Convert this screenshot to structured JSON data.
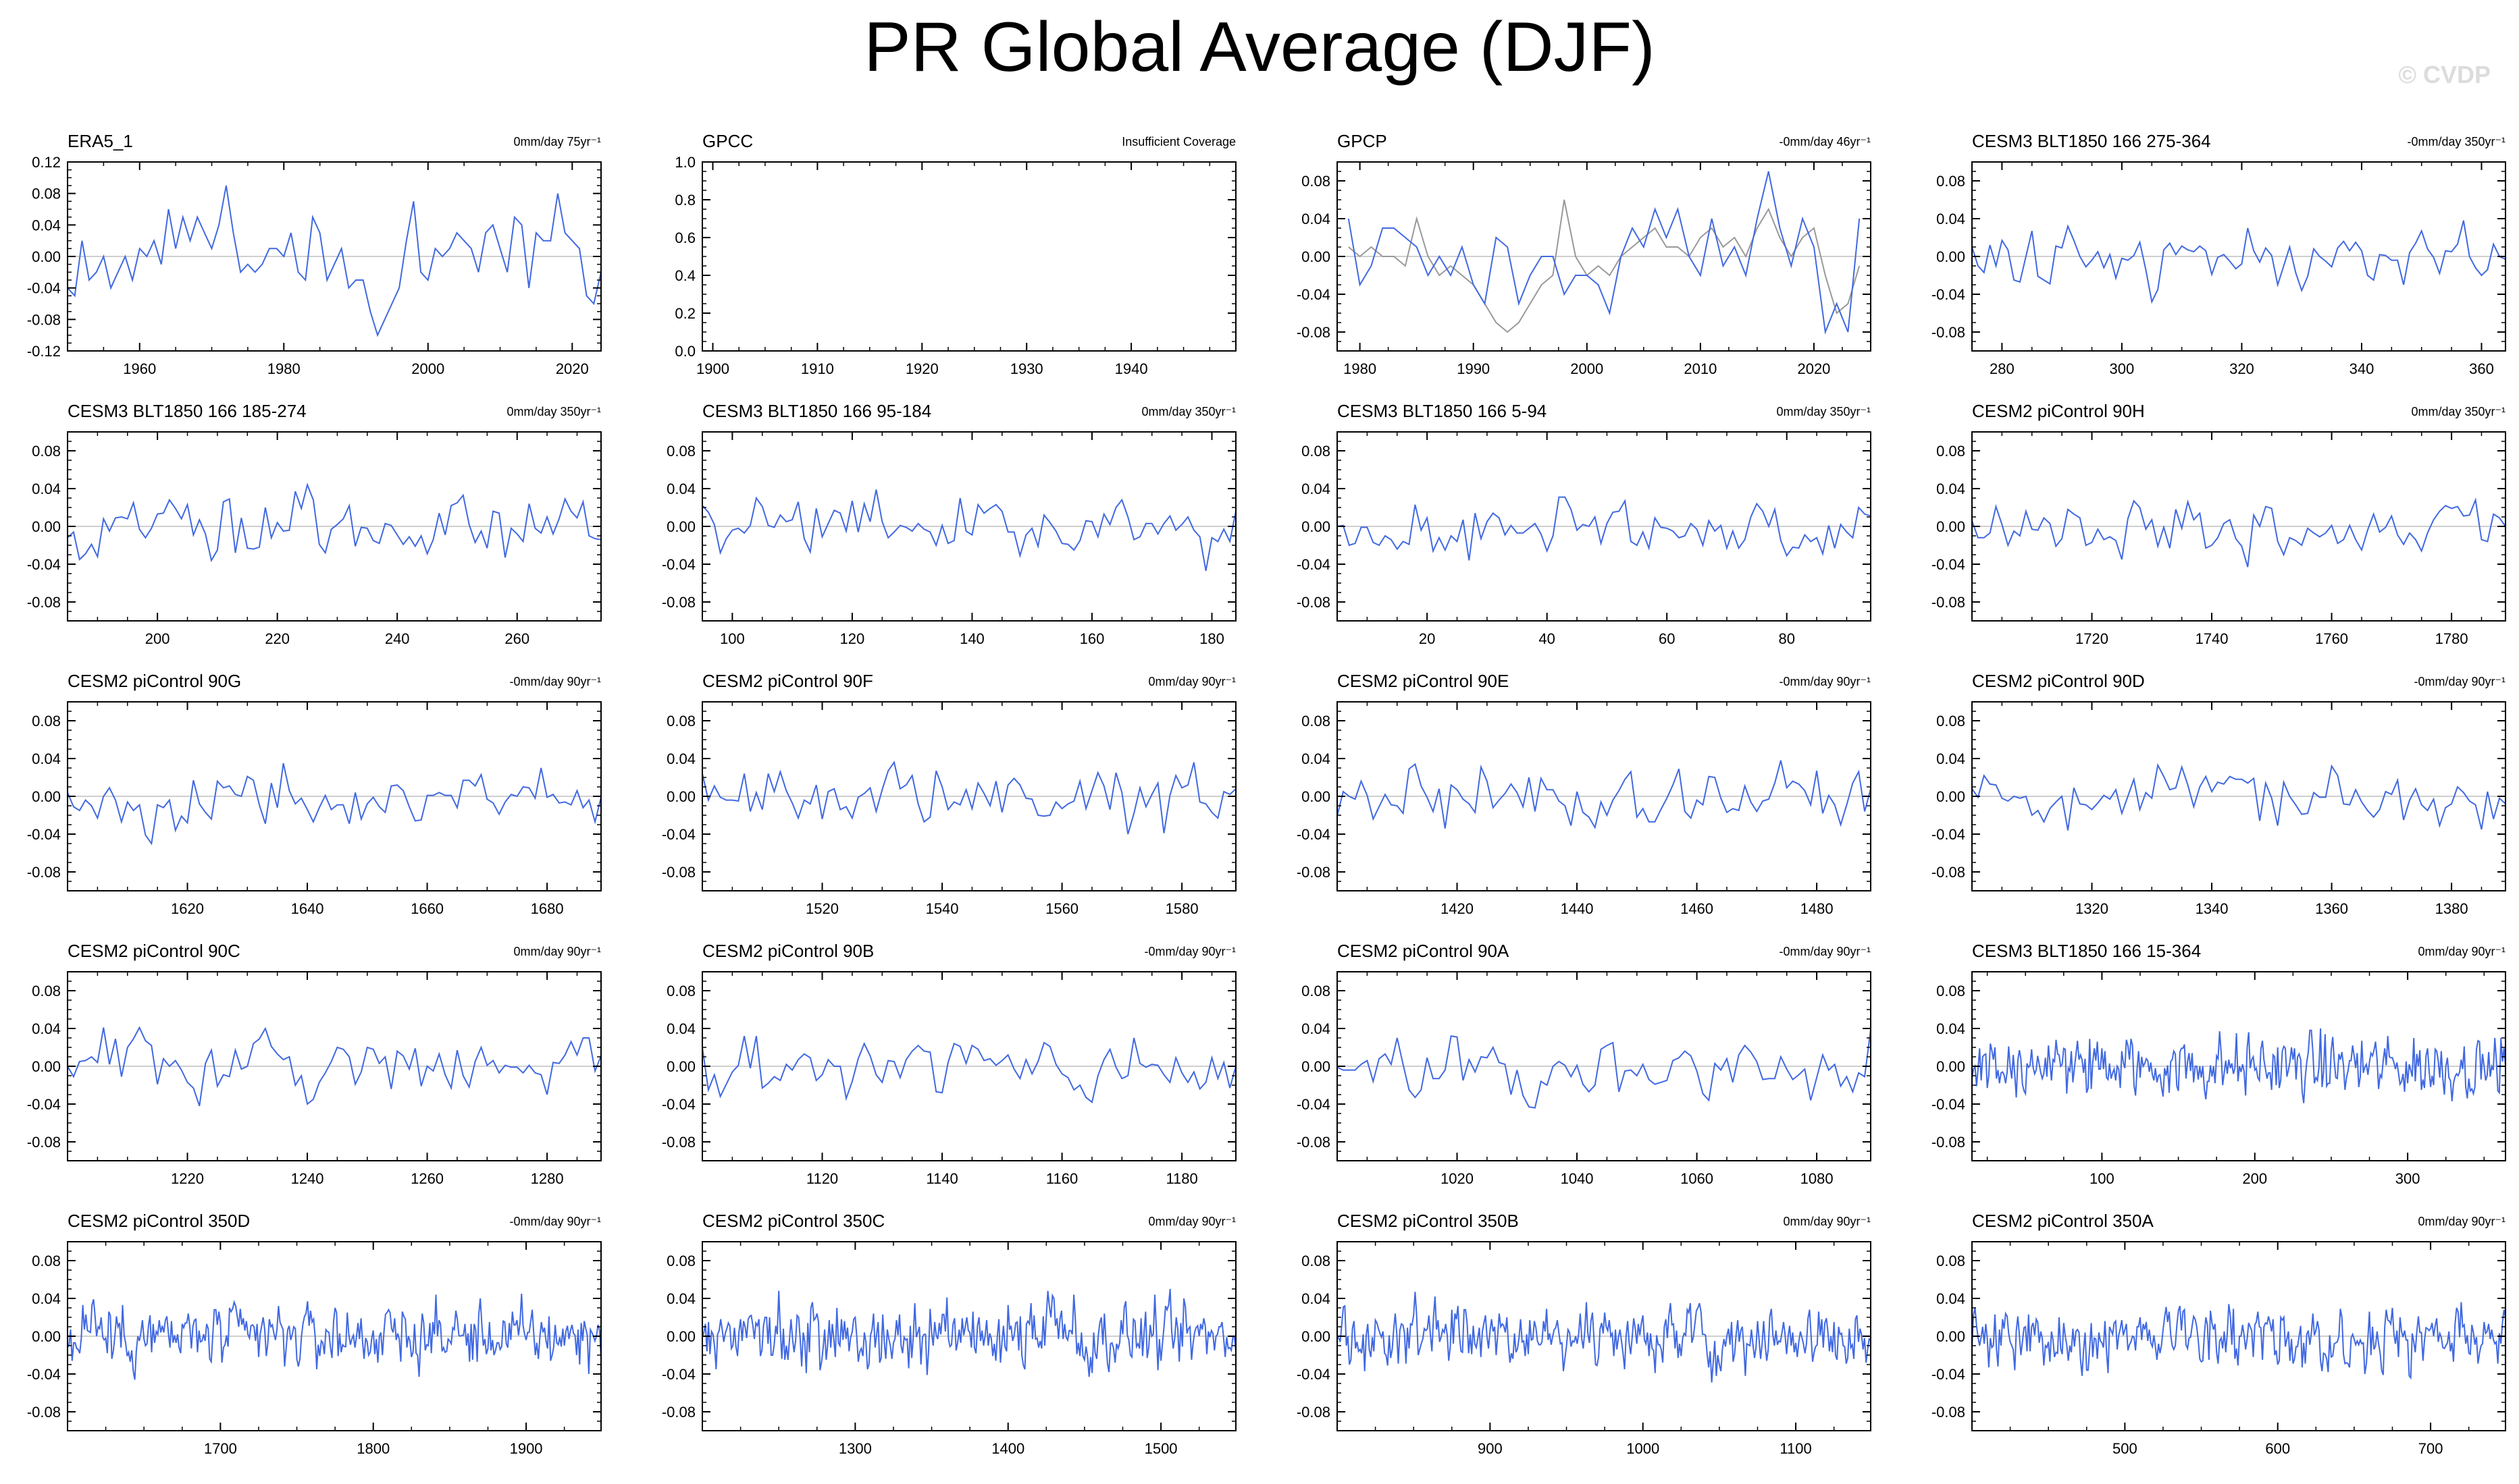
{
  "title": "PR Global Average (DJF)",
  "watermark": "© CVDP",
  "colors": {
    "model": "#4169e1",
    "obs_overlay": "#999999",
    "zero_line": "#bfbfbf",
    "axis": "#000000"
  },
  "chart_data": [
    {
      "type": "line",
      "title": "ERA5_1",
      "annotation": "0mm/day 75yr⁻¹",
      "xlim": [
        1950,
        2024
      ],
      "xticks": [
        1960,
        1980,
        2000,
        2020
      ],
      "ylim": [
        -0.12,
        0.12
      ],
      "yticks": [
        -0.12,
        -0.08,
        -0.04,
        0.0,
        0.04,
        0.08,
        0.12
      ],
      "x": [
        1950,
        1951,
        1952,
        1953,
        1954,
        1955,
        1956,
        1957,
        1958,
        1959,
        1960,
        1961,
        1962,
        1963,
        1964,
        1965,
        1966,
        1967,
        1968,
        1969,
        1970,
        1971,
        1972,
        1973,
        1974,
        1975,
        1976,
        1977,
        1978,
        1979,
        1980,
        1981,
        1982,
        1983,
        1984,
        1985,
        1986,
        1987,
        1988,
        1989,
        1990,
        1991,
        1992,
        1993,
        1994,
        1995,
        1996,
        1997,
        1998,
        1999,
        2000,
        2001,
        2002,
        2003,
        2004,
        2005,
        2006,
        2007,
        2008,
        2009,
        2010,
        2011,
        2012,
        2013,
        2014,
        2015,
        2016,
        2017,
        2018,
        2019,
        2020,
        2021,
        2022,
        2023,
        2024
      ],
      "y": [
        -0.04,
        -0.05,
        0.02,
        -0.03,
        -0.02,
        0.0,
        -0.04,
        -0.02,
        0.0,
        -0.03,
        0.01,
        0.0,
        0.02,
        -0.01,
        0.06,
        0.01,
        0.05,
        0.02,
        0.05,
        0.03,
        0.01,
        0.04,
        0.09,
        0.03,
        -0.02,
        -0.01,
        -0.02,
        -0.01,
        0.01,
        0.01,
        0.0,
        0.03,
        -0.02,
        -0.03,
        0.05,
        0.03,
        -0.03,
        -0.01,
        0.01,
        -0.04,
        -0.03,
        -0.03,
        -0.07,
        -0.1,
        -0.08,
        -0.06,
        -0.04,
        0.02,
        0.07,
        -0.02,
        -0.03,
        0.01,
        0.0,
        0.01,
        0.03,
        0.02,
        0.01,
        -0.02,
        0.03,
        0.04,
        0.01,
        -0.02,
        0.05,
        0.04,
        -0.04,
        0.03,
        0.02,
        0.02,
        0.08,
        0.03,
        0.02,
        0.01,
        -0.05,
        -0.06,
        -0.02
      ]
    },
    {
      "type": "line",
      "title": "GPCC",
      "annotation": "Insufficient Coverage",
      "xlim": [
        1899,
        1950
      ],
      "xticks": [
        1900,
        1910,
        1920,
        1930,
        1940
      ],
      "ylim": [
        0.0,
        1.0
      ],
      "yticks": [
        0.0,
        0.2,
        0.4,
        0.6,
        0.8,
        1.0
      ],
      "x": [],
      "y": []
    },
    {
      "type": "line",
      "title": "GPCP",
      "annotation": "-0mm/day 46yr⁻¹",
      "xlim": [
        1978,
        2025
      ],
      "xticks": [
        1980,
        1990,
        2000,
        2010,
        2020
      ],
      "ylim": [
        -0.1,
        0.1
      ],
      "yticks": [
        -0.08,
        -0.04,
        0.0,
        0.04,
        0.08
      ],
      "x": [
        1979,
        1980,
        1981,
        1982,
        1983,
        1984,
        1985,
        1986,
        1987,
        1988,
        1989,
        1990,
        1991,
        1992,
        1993,
        1994,
        1995,
        1996,
        1997,
        1998,
        1999,
        2000,
        2001,
        2002,
        2003,
        2004,
        2005,
        2006,
        2007,
        2008,
        2009,
        2010,
        2011,
        2012,
        2013,
        2014,
        2015,
        2016,
        2017,
        2018,
        2019,
        2020,
        2021,
        2022,
        2023,
        2024
      ],
      "y": [
        0.04,
        -0.03,
        -0.01,
        0.03,
        0.03,
        0.02,
        0.01,
        -0.02,
        0.0,
        -0.02,
        0.01,
        -0.03,
        -0.05,
        0.02,
        0.01,
        -0.05,
        -0.02,
        0.0,
        0.0,
        -0.04,
        -0.02,
        -0.02,
        -0.03,
        -0.06,
        0.0,
        0.03,
        0.01,
        0.05,
        0.02,
        0.05,
        0.0,
        -0.02,
        0.04,
        -0.01,
        0.01,
        -0.02,
        0.04,
        0.09,
        0.03,
        -0.01,
        0.04,
        0.01,
        -0.08,
        -0.05,
        -0.08,
        0.04
      ],
      "overlay": {
        "x": [
          1979,
          1980,
          1981,
          1982,
          1983,
          1984,
          1985,
          1986,
          1987,
          1988,
          1989,
          1990,
          1991,
          1992,
          1993,
          1994,
          1995,
          1996,
          1997,
          1998,
          1999,
          2000,
          2001,
          2002,
          2003,
          2004,
          2005,
          2006,
          2007,
          2008,
          2009,
          2010,
          2011,
          2012,
          2013,
          2014,
          2015,
          2016,
          2017,
          2018,
          2019,
          2020,
          2021,
          2022,
          2023,
          2024
        ],
        "y": [
          0.01,
          0.0,
          0.01,
          0.0,
          0.0,
          -0.01,
          0.04,
          0.0,
          -0.02,
          -0.01,
          -0.02,
          -0.03,
          -0.05,
          -0.07,
          -0.08,
          -0.07,
          -0.05,
          -0.03,
          -0.02,
          0.06,
          0.0,
          -0.02,
          -0.01,
          -0.02,
          0.0,
          0.01,
          0.02,
          0.03,
          0.01,
          0.01,
          0.0,
          0.02,
          0.03,
          0.01,
          0.02,
          0.0,
          0.03,
          0.05,
          0.02,
          0.0,
          0.02,
          0.03,
          -0.02,
          -0.06,
          -0.05,
          -0.01
        ]
      }
    },
    {
      "type": "line",
      "title": "CESM3 BLT1850 166 275-364",
      "annotation": "-0mm/day 350yr⁻¹",
      "xlim": [
        275,
        364
      ],
      "xticks": [
        280,
        300,
        320,
        340,
        360
      ],
      "ylim": [
        -0.1,
        0.1
      ],
      "yticks": [
        -0.08,
        -0.04,
        0.0,
        0.04,
        0.08
      ],
      "seed": 11
    },
    {
      "type": "line",
      "title": "CESM3 BLT1850 166 185-274",
      "annotation": "0mm/day 350yr⁻¹",
      "xlim": [
        185,
        274
      ],
      "xticks": [
        200,
        220,
        240,
        260
      ],
      "ylim": [
        -0.1,
        0.1
      ],
      "yticks": [
        -0.08,
        -0.04,
        0.0,
        0.04,
        0.08
      ],
      "seed": 12
    },
    {
      "type": "line",
      "title": "CESM3 BLT1850 166 95-184",
      "annotation": "0mm/day 350yr⁻¹",
      "xlim": [
        95,
        184
      ],
      "xticks": [
        100,
        120,
        140,
        160,
        180
      ],
      "ylim": [
        -0.1,
        0.1
      ],
      "yticks": [
        -0.08,
        -0.04,
        0.0,
        0.04,
        0.08
      ],
      "seed": 13
    },
    {
      "type": "line",
      "title": "CESM3 BLT1850 166 5-94",
      "annotation": "0mm/day 350yr⁻¹",
      "xlim": [
        5,
        94
      ],
      "xticks": [
        20,
        40,
        60,
        80
      ],
      "ylim": [
        -0.1,
        0.1
      ],
      "yticks": [
        -0.08,
        -0.04,
        0.0,
        0.04,
        0.08
      ],
      "seed": 14
    },
    {
      "type": "line",
      "title": "CESM2 piControl 90H",
      "annotation": "0mm/day 350yr⁻¹",
      "xlim": [
        1700,
        1789
      ],
      "xticks": [
        1720,
        1740,
        1760,
        1780
      ],
      "ylim": [
        -0.1,
        0.1
      ],
      "yticks": [
        -0.08,
        -0.04,
        0.0,
        0.04,
        0.08
      ],
      "seed": 15
    },
    {
      "type": "line",
      "title": "CESM2 piControl 90G",
      "annotation": "-0mm/day 90yr⁻¹",
      "xlim": [
        1600,
        1689
      ],
      "xticks": [
        1620,
        1640,
        1660,
        1680
      ],
      "ylim": [
        -0.1,
        0.1
      ],
      "yticks": [
        -0.08,
        -0.04,
        0.0,
        0.04,
        0.08
      ],
      "seed": 16
    },
    {
      "type": "line",
      "title": "CESM2 piControl 90F",
      "annotation": "0mm/day 90yr⁻¹",
      "xlim": [
        1500,
        1589
      ],
      "xticks": [
        1520,
        1540,
        1560,
        1580
      ],
      "ylim": [
        -0.1,
        0.1
      ],
      "yticks": [
        -0.08,
        -0.04,
        0.0,
        0.04,
        0.08
      ],
      "seed": 17
    },
    {
      "type": "line",
      "title": "CESM2 piControl 90E",
      "annotation": "-0mm/day 90yr⁻¹",
      "xlim": [
        1400,
        1489
      ],
      "xticks": [
        1420,
        1440,
        1460,
        1480
      ],
      "ylim": [
        -0.1,
        0.1
      ],
      "yticks": [
        -0.08,
        -0.04,
        0.0,
        0.04,
        0.08
      ],
      "seed": 18
    },
    {
      "type": "line",
      "title": "CESM2 piControl 90D",
      "annotation": "-0mm/day 90yr⁻¹",
      "xlim": [
        1300,
        1389
      ],
      "xticks": [
        1320,
        1340,
        1360,
        1380
      ],
      "ylim": [
        -0.1,
        0.1
      ],
      "yticks": [
        -0.08,
        -0.04,
        0.0,
        0.04,
        0.08
      ],
      "seed": 19
    },
    {
      "type": "line",
      "title": "CESM2 piControl 90C",
      "annotation": "0mm/day 90yr⁻¹",
      "xlim": [
        1200,
        1289
      ],
      "xticks": [
        1220,
        1240,
        1260,
        1280
      ],
      "ylim": [
        -0.1,
        0.1
      ],
      "yticks": [
        -0.08,
        -0.04,
        0.0,
        0.04,
        0.08
      ],
      "seed": 20
    },
    {
      "type": "line",
      "title": "CESM2 piControl 90B",
      "annotation": "-0mm/day 90yr⁻¹",
      "xlim": [
        1100,
        1189
      ],
      "xticks": [
        1120,
        1140,
        1160,
        1180
      ],
      "ylim": [
        -0.1,
        0.1
      ],
      "yticks": [
        -0.08,
        -0.04,
        0.0,
        0.04,
        0.08
      ],
      "seed": 21
    },
    {
      "type": "line",
      "title": "CESM2 piControl 90A",
      "annotation": "-0mm/day 90yr⁻¹",
      "xlim": [
        1000,
        1089
      ],
      "xticks": [
        1020,
        1040,
        1060,
        1080
      ],
      "ylim": [
        -0.1,
        0.1
      ],
      "yticks": [
        -0.08,
        -0.04,
        0.0,
        0.04,
        0.08
      ],
      "seed": 22
    },
    {
      "type": "line",
      "title": "CESM3 BLT1850 166 15-364",
      "annotation": "0mm/day 90yr⁻¹",
      "xlim": [
        15,
        364
      ],
      "xticks": [
        100,
        200,
        300
      ],
      "ylim": [
        -0.1,
        0.1
      ],
      "yticks": [
        -0.08,
        -0.04,
        0.0,
        0.04,
        0.08
      ],
      "seed": 23
    },
    {
      "type": "line",
      "title": "CESM2 piControl 350D",
      "annotation": "-0mm/day 90yr⁻¹",
      "xlim": [
        1600,
        1949
      ],
      "xticks": [
        1700,
        1800,
        1900
      ],
      "ylim": [
        -0.1,
        0.1
      ],
      "yticks": [
        -0.08,
        -0.04,
        0.0,
        0.04,
        0.08
      ],
      "seed": 24
    },
    {
      "type": "line",
      "title": "CESM2 piControl 350C",
      "annotation": "0mm/day 90yr⁻¹",
      "xlim": [
        1200,
        1549
      ],
      "xticks": [
        1300,
        1400,
        1500
      ],
      "ylim": [
        -0.1,
        0.1
      ],
      "yticks": [
        -0.08,
        -0.04,
        0.0,
        0.04,
        0.08
      ],
      "seed": 25
    },
    {
      "type": "line",
      "title": "CESM2 piControl 350B",
      "annotation": "0mm/day 90yr⁻¹",
      "xlim": [
        800,
        1149
      ],
      "xticks": [
        900,
        1000,
        1100
      ],
      "ylim": [
        -0.1,
        0.1
      ],
      "yticks": [
        -0.08,
        -0.04,
        0.0,
        0.04,
        0.08
      ],
      "seed": 26
    },
    {
      "type": "line",
      "title": "CESM2 piControl 350A",
      "annotation": "0mm/day 90yr⁻¹",
      "xlim": [
        400,
        749
      ],
      "xticks": [
        500,
        600,
        700
      ],
      "ylim": [
        -0.1,
        0.1
      ],
      "yticks": [
        -0.08,
        -0.04,
        0.0,
        0.04,
        0.08
      ],
      "seed": 27
    }
  ]
}
